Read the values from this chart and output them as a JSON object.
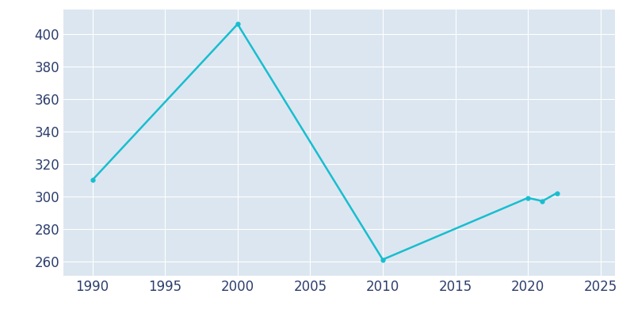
{
  "years": [
    1990,
    2000,
    2010,
    2020,
    2021,
    2022
  ],
  "population": [
    310,
    406,
    261,
    299,
    297,
    302
  ],
  "line_color": "#17becf",
  "bg_color": "#dce6f0",
  "fig_bg_color": "#ffffff",
  "grid_color": "#ffffff",
  "marker": "o",
  "marker_size": 3.5,
  "line_width": 1.8,
  "xlim": [
    1988,
    2026
  ],
  "ylim": [
    251,
    415
  ],
  "xticks": [
    1990,
    1995,
    2000,
    2005,
    2010,
    2015,
    2020,
    2025
  ],
  "yticks": [
    260,
    280,
    300,
    320,
    340,
    360,
    380,
    400
  ],
  "tick_color": "#2d3e6e",
  "tick_fontsize": 12
}
